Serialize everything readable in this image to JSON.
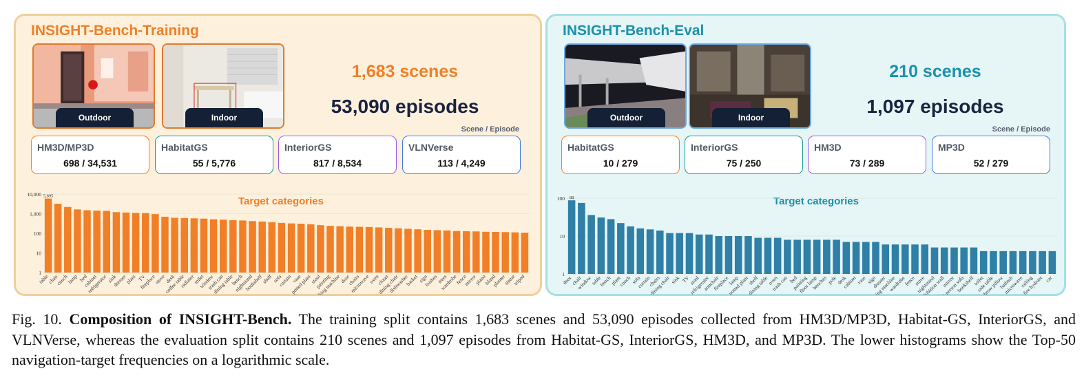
{
  "training": {
    "title": "INSIGHT-Bench-Training",
    "scenes": "1,683 scenes",
    "episodes": "53,090 episodes",
    "scene_episode_label": "Scene / Episode",
    "images": [
      {
        "label": "Outdoor"
      },
      {
        "label": "Indoor"
      }
    ],
    "sources": [
      {
        "name": "HM3D/MP3D",
        "value": "698 / 34,531"
      },
      {
        "name": "HabitatGS",
        "value": "55 / 5,776"
      },
      {
        "name": "InteriorGS",
        "value": "817 / 8,534"
      },
      {
        "name": "VLNVerse",
        "value": "113 / 4,249"
      }
    ],
    "chart_title": "Target categories"
  },
  "eval": {
    "title": "INSIGHT-Bench-Eval",
    "scenes": "210 scenes",
    "episodes": "1,097 episodes",
    "scene_episode_label": "Scene / Episode",
    "images": [
      {
        "label": "Outdoor"
      },
      {
        "label": "Indoor"
      }
    ],
    "sources": [
      {
        "name": "HabitatGS",
        "value": "10 / 279"
      },
      {
        "name": "InteriorGS",
        "value": "75 / 250"
      },
      {
        "name": "HM3D",
        "value": "73 / 289"
      },
      {
        "name": "MP3D",
        "value": "52 / 279"
      }
    ],
    "chart_title": "Target categories"
  },
  "colors": {
    "train_accent": "#f07f27",
    "eval_accent": "#1a91ad",
    "train_bar": "#f07f27",
    "eval_bar": "#2f7fa6",
    "source_borders": [
      "#f07f27",
      "#1a9a8c",
      "#9b5de5",
      "#3f7be0"
    ]
  },
  "caption": {
    "fig": "Fig. 10.",
    "bold": "Composition of INSIGHT-Bench.",
    "text": "The training split contains 1,683 scenes and 53,090 episodes collected from HM3D/MP3D, Habitat-GS, InteriorGS, and VLNVerse, whereas the evaluation split contains 210 scenes and 1,097 episodes from Habitat-GS, InteriorGS, HM3D, and MP3D. The lower histograms show the Top-50 navigation-target frequencies on a logarithmic scale."
  },
  "chart_data": [
    {
      "type": "bar",
      "title": "Target categories",
      "yscale": "log",
      "ylim": [
        1,
        10000
      ],
      "yticks": [
        "1",
        "10",
        "100",
        "1,000",
        "10,000"
      ],
      "top_label": "5,895",
      "categories": [
        "table",
        "chair",
        "couch",
        "lamp",
        "bed",
        "cabinet",
        "refrigerator",
        "sink",
        "dresser",
        "plant",
        "TV",
        "fireplace",
        "stove",
        "desk",
        "coffee table",
        "radiator",
        "toilet",
        "window",
        "trash can",
        "dining table",
        "bench",
        "nightstand",
        "bookshelf",
        "shelf",
        "sofa",
        "curtain",
        "vase",
        "potted plant",
        "stool",
        "painting",
        "washing machine",
        "door",
        "chairs",
        "microwave",
        "oven",
        "closet",
        "dining chair",
        "dishwasher",
        "basket",
        "sign",
        "bushes",
        "trees",
        "wardrobe",
        "fence",
        "mirror",
        "piano",
        "island",
        "planter",
        "statue",
        "tripod"
      ],
      "values": [
        5895,
        3200,
        2200,
        1650,
        1500,
        1450,
        1400,
        1200,
        1150,
        1100,
        1080,
        950,
        700,
        620,
        600,
        580,
        560,
        520,
        500,
        470,
        450,
        420,
        400,
        370,
        340,
        320,
        310,
        290,
        260,
        240,
        230,
        220,
        215,
        210,
        200,
        190,
        180,
        170,
        160,
        150,
        145,
        140,
        130,
        128,
        125,
        120,
        118,
        115,
        112,
        108
      ]
    },
    {
      "type": "bar",
      "title": "Target categories",
      "yscale": "log",
      "ylim": [
        1,
        100
      ],
      "yticks": [
        "1",
        "10",
        "100"
      ],
      "top_label": "88",
      "categories": [
        "door",
        "chair",
        "window",
        "table",
        "bench",
        "plant",
        "couch",
        "sofa",
        "curtain",
        "chairs",
        "dining chair",
        "sink",
        "TV",
        "stool",
        "refrigerator",
        "armchair",
        "fireplace",
        "lamp",
        "potted plant",
        "shelf",
        "dining table",
        "oven",
        "trash can",
        "bed",
        "painting",
        "floor lamp",
        "benches",
        "pole",
        "desk",
        "cabinet",
        "vase",
        "sign",
        "dresser",
        "washing machine",
        "wardrobe",
        "fence",
        "stove",
        "nightstand",
        "exhibition wall",
        "mirror",
        "multi-person sofa",
        "bookshelf",
        "toilet",
        "side table",
        "throw pillow",
        "bathtub",
        "microwave",
        "railing",
        "fire hydrant",
        "car"
      ],
      "values": [
        88,
        75,
        36,
        31,
        28,
        22,
        18,
        16,
        15,
        14,
        12,
        12,
        12,
        11,
        11,
        10,
        10,
        10,
        10,
        9,
        9,
        9,
        8,
        8,
        8,
        8,
        8,
        8,
        7,
        7,
        7,
        7,
        6,
        6,
        6,
        6,
        6,
        5,
        5,
        5,
        5,
        5,
        4,
        4,
        4,
        4,
        4,
        4,
        4,
        4
      ]
    }
  ]
}
